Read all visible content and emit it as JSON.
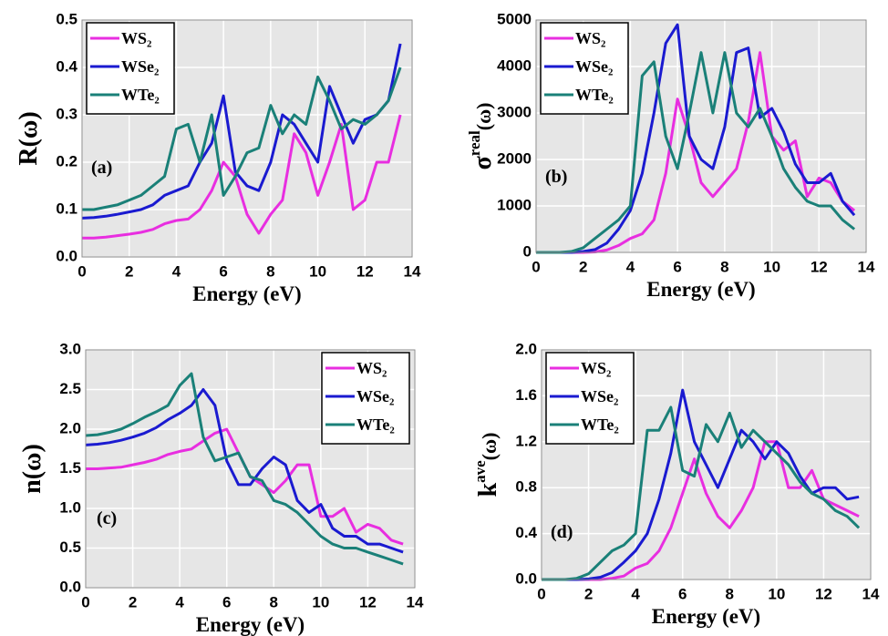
{
  "chart_data": [
    {
      "type": "line",
      "panel_label": "(a)",
      "xlabel": "Energy (eV)",
      "ylabel": "R(ω)",
      "x": [
        0,
        0.5,
        1,
        1.5,
        2,
        2.5,
        3,
        3.5,
        4,
        4.5,
        5,
        5.5,
        6,
        6.5,
        7,
        7.5,
        8,
        8.5,
        9,
        9.5,
        10,
        10.5,
        11,
        11.5,
        12,
        12.5,
        13,
        13.5
      ],
      "xlim": [
        0,
        14
      ],
      "xticks": [
        0,
        2,
        4,
        6,
        8,
        10,
        12,
        14
      ],
      "ylim": [
        0,
        0.5
      ],
      "yticks": [
        {
          "value": 0,
          "label": "0.0"
        },
        0.1,
        0.2,
        0.3,
        0.4,
        0.5
      ],
      "grid": true,
      "legend": "upper left",
      "series": [
        {
          "name": "WS₂",
          "color": "#e82ee0",
          "values": [
            0.04,
            0.04,
            0.042,
            0.045,
            0.048,
            0.052,
            0.058,
            0.07,
            0.077,
            0.08,
            0.1,
            0.14,
            0.2,
            0.17,
            0.09,
            0.05,
            0.09,
            0.12,
            0.26,
            0.22,
            0.13,
            0.2,
            0.28,
            0.1,
            0.12,
            0.2,
            0.2,
            0.3
          ]
        },
        {
          "name": "WSe₂",
          "color": "#1a1ad0",
          "values": [
            0.082,
            0.083,
            0.086,
            0.09,
            0.095,
            0.1,
            0.11,
            0.13,
            0.14,
            0.15,
            0.2,
            0.24,
            0.34,
            0.18,
            0.15,
            0.14,
            0.2,
            0.3,
            0.28,
            0.24,
            0.2,
            0.36,
            0.3,
            0.24,
            0.29,
            0.3,
            0.33,
            0.45
          ]
        },
        {
          "name": "WTe₂",
          "color": "#1a8078",
          "values": [
            0.1,
            0.1,
            0.105,
            0.11,
            0.12,
            0.13,
            0.15,
            0.17,
            0.27,
            0.28,
            0.2,
            0.3,
            0.13,
            0.17,
            0.22,
            0.23,
            0.32,
            0.26,
            0.3,
            0.28,
            0.38,
            0.33,
            0.27,
            0.29,
            0.28,
            0.3,
            0.33,
            0.4
          ]
        }
      ]
    },
    {
      "type": "line",
      "panel_label": "(b)",
      "xlabel": "Energy (eV)",
      "ylabel": "σ",
      "ylabel_sup": "real",
      "ylabel_tail": "(ω)",
      "x": [
        0,
        0.5,
        1,
        1.5,
        2,
        2.5,
        3,
        3.5,
        4,
        4.5,
        5,
        5.5,
        6,
        6.5,
        7,
        7.5,
        8,
        8.5,
        9,
        9.5,
        10,
        10.5,
        11,
        11.5,
        12,
        12.5,
        13,
        13.5
      ],
      "xlim": [
        0,
        14
      ],
      "xticks": [
        0,
        2,
        4,
        6,
        8,
        10,
        12,
        14
      ],
      "ylim": [
        0,
        5000
      ],
      "yticks": [
        0,
        1000,
        2000,
        3000,
        4000,
        5000
      ],
      "grid": true,
      "legend": "upper left",
      "series": [
        {
          "name": "WS₂",
          "color": "#e82ee0",
          "values": [
            0,
            0,
            0,
            0,
            0,
            10,
            50,
            150,
            300,
            400,
            700,
            1700,
            3300,
            2500,
            1500,
            1200,
            1500,
            1800,
            2800,
            4300,
            2500,
            2200,
            2400,
            1200,
            1600,
            1500,
            1100,
            900
          ]
        },
        {
          "name": "WSe₂",
          "color": "#1a1ad0",
          "values": [
            0,
            0,
            0,
            0,
            20,
            60,
            200,
            500,
            900,
            1700,
            3000,
            4500,
            4900,
            2500,
            2000,
            1800,
            2700,
            4300,
            4400,
            2900,
            3100,
            2600,
            1900,
            1500,
            1500,
            1700,
            1100,
            800
          ]
        },
        {
          "name": "WTe₂",
          "color": "#1a8078",
          "values": [
            0,
            0,
            0,
            20,
            100,
            300,
            500,
            700,
            1000,
            3800,
            4100,
            2500,
            1800,
            3000,
            4300,
            3000,
            4300,
            3000,
            2700,
            3100,
            2500,
            1800,
            1400,
            1100,
            1000,
            1000,
            700,
            500
          ]
        }
      ]
    },
    {
      "type": "line",
      "panel_label": "(c)",
      "xlabel": "Energy (eV)",
      "ylabel": "n(ω)",
      "x": [
        0,
        0.5,
        1,
        1.5,
        2,
        2.5,
        3,
        3.5,
        4,
        4.5,
        5,
        5.5,
        6,
        6.5,
        7,
        7.5,
        8,
        8.5,
        9,
        9.5,
        10,
        10.5,
        11,
        11.5,
        12,
        12.5,
        13,
        13.5
      ],
      "xlim": [
        0,
        14
      ],
      "xticks": [
        0,
        2,
        4,
        6,
        8,
        10,
        12,
        14
      ],
      "ylim": [
        0,
        3
      ],
      "yticks": [
        {
          "value": 0,
          "label": "0.0"
        },
        0.5,
        {
          "value": 1,
          "label": "1.0"
        },
        1.5,
        {
          "value": 2,
          "label": "2.0"
        },
        2.5,
        {
          "value": 3,
          "label": "3.0"
        }
      ],
      "grid": true,
      "legend": "upper right",
      "series": [
        {
          "name": "WS₂",
          "color": "#e82ee0",
          "values": [
            1.5,
            1.5,
            1.51,
            1.52,
            1.55,
            1.58,
            1.62,
            1.68,
            1.72,
            1.75,
            1.85,
            1.95,
            2.0,
            1.7,
            1.4,
            1.3,
            1.2,
            1.35,
            1.55,
            1.55,
            0.9,
            0.9,
            1.0,
            0.7,
            0.8,
            0.75,
            0.6,
            0.55
          ]
        },
        {
          "name": "WSe₂",
          "color": "#1a1ad0",
          "values": [
            1.8,
            1.81,
            1.83,
            1.86,
            1.9,
            1.95,
            2.02,
            2.12,
            2.2,
            2.3,
            2.5,
            2.3,
            1.6,
            1.3,
            1.3,
            1.5,
            1.65,
            1.55,
            1.1,
            0.95,
            1.05,
            0.75,
            0.65,
            0.65,
            0.55,
            0.55,
            0.5,
            0.45
          ]
        },
        {
          "name": "WTe₂",
          "color": "#1a8078",
          "values": [
            1.92,
            1.93,
            1.96,
            2.0,
            2.07,
            2.15,
            2.22,
            2.3,
            2.55,
            2.7,
            1.9,
            1.6,
            1.65,
            1.7,
            1.4,
            1.35,
            1.1,
            1.05,
            0.95,
            0.8,
            0.65,
            0.55,
            0.5,
            0.5,
            0.45,
            0.4,
            0.35,
            0.3
          ]
        }
      ]
    },
    {
      "type": "line",
      "panel_label": "(d)",
      "xlabel": "Energy (eV)",
      "ylabel": "k",
      "ylabel_sup": "ave",
      "ylabel_tail": "(ω)",
      "x": [
        0,
        0.5,
        1,
        1.5,
        2,
        2.5,
        3,
        3.5,
        4,
        4.5,
        5,
        5.5,
        6,
        6.5,
        7,
        7.5,
        8,
        8.5,
        9,
        9.5,
        10,
        10.5,
        11,
        11.5,
        12,
        12.5,
        13,
        13.5
      ],
      "xlim": [
        0,
        14
      ],
      "xticks": [
        0,
        2,
        4,
        6,
        8,
        10,
        12,
        14
      ],
      "ylim": [
        0,
        2
      ],
      "yticks": [
        {
          "value": 0,
          "label": "0.0"
        },
        0.4,
        0.8,
        1.2,
        1.6,
        {
          "value": 2,
          "label": "2.0"
        }
      ],
      "grid": true,
      "legend": "upper left",
      "series": [
        {
          "name": "WS₂",
          "color": "#e82ee0",
          "values": [
            0,
            0,
            0,
            0,
            0,
            0,
            0.01,
            0.03,
            0.1,
            0.14,
            0.25,
            0.45,
            0.75,
            1.05,
            0.75,
            0.55,
            0.45,
            0.6,
            0.8,
            1.2,
            1.2,
            0.8,
            0.8,
            0.95,
            0.7,
            0.65,
            0.6,
            0.55
          ]
        },
        {
          "name": "WSe₂",
          "color": "#1a1ad0",
          "values": [
            0,
            0,
            0,
            0,
            0.005,
            0.02,
            0.06,
            0.15,
            0.25,
            0.4,
            0.7,
            1.1,
            1.65,
            1.2,
            1.0,
            0.8,
            1.05,
            1.3,
            1.2,
            1.05,
            1.2,
            1.1,
            0.9,
            0.75,
            0.8,
            0.8,
            0.7,
            0.72
          ]
        },
        {
          "name": "WTe₂",
          "color": "#1a8078",
          "values": [
            0,
            0,
            0,
            0.01,
            0.05,
            0.15,
            0.25,
            0.3,
            0.4,
            1.3,
            1.3,
            1.5,
            0.95,
            0.9,
            1.35,
            1.2,
            1.45,
            1.15,
            1.3,
            1.2,
            1.1,
            1.0,
            0.85,
            0.75,
            0.7,
            0.6,
            0.55,
            0.45
          ]
        }
      ]
    }
  ]
}
